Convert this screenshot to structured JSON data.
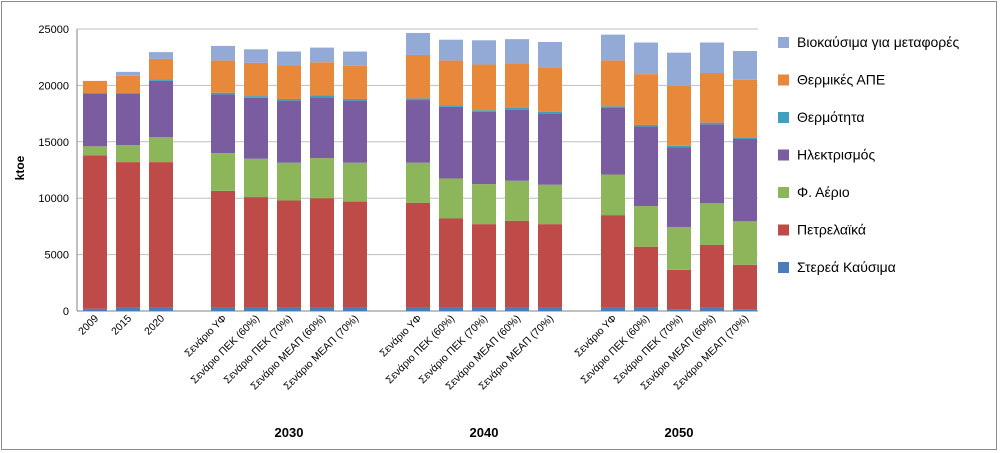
{
  "chart_data": {
    "type": "bar",
    "stacked": true,
    "ylabel": "ktoe",
    "ylim": [
      0,
      25000
    ],
    "yticks": [
      0,
      5000,
      10000,
      15000,
      20000,
      25000
    ],
    "grid": true,
    "legend_position": "right",
    "groups": [
      {
        "label": "",
        "categories": [
          "2009",
          "2015",
          "2020"
        ]
      },
      {
        "label": "2030",
        "categories": [
          "Σενάριο ΥΦ",
          "Σενάριο ΠΕΚ (60%)",
          "Σενάριο ΠΕΚ (70%)",
          "Σενάριο ΜΕΑΠ (60%)",
          "Σενάριο ΜΕΑΠ (70%)"
        ]
      },
      {
        "label": "2040",
        "categories": [
          "Σενάριο ΥΦ",
          "Σενάριο ΠΕΚ (60%)",
          "Σενάριο ΠΕΚ (70%)",
          "Σενάριο ΜΕΑΠ (60%)",
          "Σενάριο ΜΕΑΠ (70%)"
        ]
      },
      {
        "label": "2050",
        "categories": [
          "Σενάριο ΥΦ",
          "Σενάριο ΠΕΚ (60%)",
          "Σενάριο ΠΕΚ (70%)",
          "Σενάριο ΜΕΑΠ (60%)",
          "Σενάριο ΜΕΑΠ (70%)"
        ]
      }
    ],
    "series": [
      {
        "name": "Στερεά Καύσιμα",
        "color": "#4a7ebb",
        "values": [
          200,
          300,
          300,
          350,
          350,
          350,
          350,
          350,
          350,
          350,
          350,
          350,
          350,
          300,
          300,
          150,
          300,
          150
        ]
      },
      {
        "name": "Πετρελαϊκά",
        "color": "#be4b48",
        "values": [
          13600,
          12900,
          12900,
          10300,
          9750,
          9450,
          9650,
          9350,
          9250,
          7850,
          7350,
          7650,
          7350,
          8200,
          5400,
          3500,
          5550,
          3950
        ]
      },
      {
        "name": "Φ. Αέριο",
        "color": "#8db65a",
        "values": [
          800,
          1500,
          2200,
          3350,
          3400,
          3350,
          3550,
          3450,
          3550,
          3550,
          3550,
          3550,
          3500,
          3600,
          3600,
          3800,
          3700,
          3850
        ]
      },
      {
        "name": "Ηλεκτρισμός",
        "color": "#7a5ca1",
        "values": [
          4700,
          4600,
          5000,
          5200,
          5400,
          5500,
          5400,
          5500,
          5550,
          6350,
          6400,
          6300,
          6300,
          5900,
          7050,
          7050,
          7000,
          7300
        ]
      },
      {
        "name": "Θερμότητα",
        "color": "#3e9fbf",
        "values": [
          0,
          0,
          150,
          150,
          150,
          150,
          150,
          150,
          150,
          150,
          150,
          150,
          150,
          150,
          150,
          150,
          150,
          150
        ]
      },
      {
        "name": "Θερμικές ΑΠΕ",
        "color": "#e8883a",
        "values": [
          1100,
          1550,
          1800,
          2850,
          2950,
          3000,
          2950,
          2950,
          3850,
          3950,
          4050,
          3950,
          3950,
          4050,
          4500,
          5300,
          4400,
          5100
        ]
      },
      {
        "name": "Βιοκαύσιμα για μεταφορές",
        "color": "#93a9d6",
        "values": [
          0,
          350,
          600,
          1300,
          1200,
          1200,
          1300,
          1250,
          1950,
          1850,
          2150,
          2150,
          2250,
          2300,
          2800,
          2950,
          2700,
          2550
        ]
      }
    ]
  }
}
